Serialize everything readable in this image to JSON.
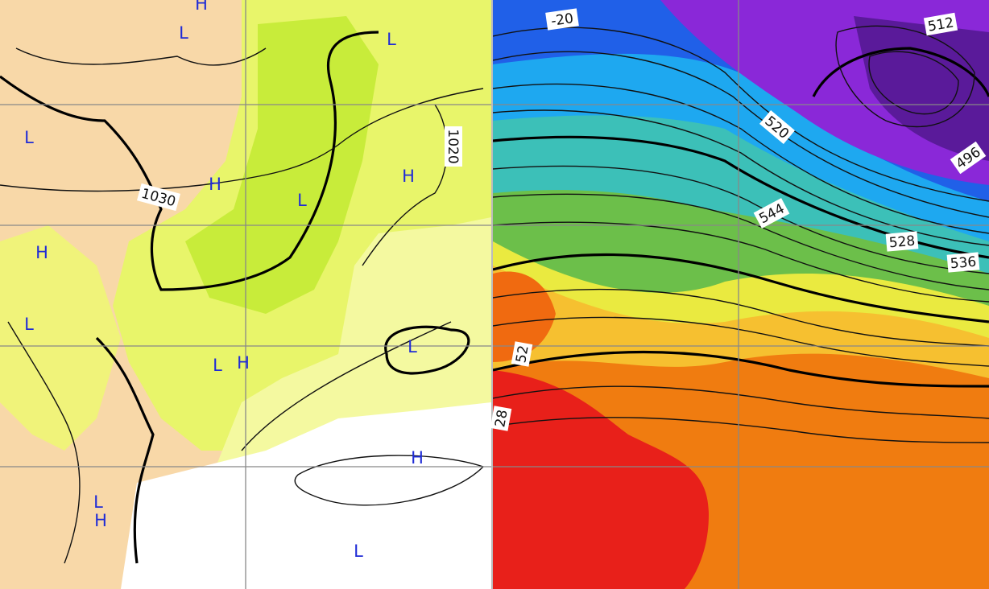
{
  "left_panel": {
    "pressure_labels": [
      "1030",
      "1020"
    ],
    "markers": [
      "H",
      "L",
      "L",
      "L",
      "H",
      "L",
      "H",
      "H",
      "L",
      "L",
      "L",
      "H",
      "H",
      "L",
      "H",
      "L"
    ]
  },
  "right_panel": {
    "contour_labels": [
      "-20",
      "512",
      "520",
      "496",
      "544",
      "528",
      "536",
      "52",
      "28"
    ]
  }
}
